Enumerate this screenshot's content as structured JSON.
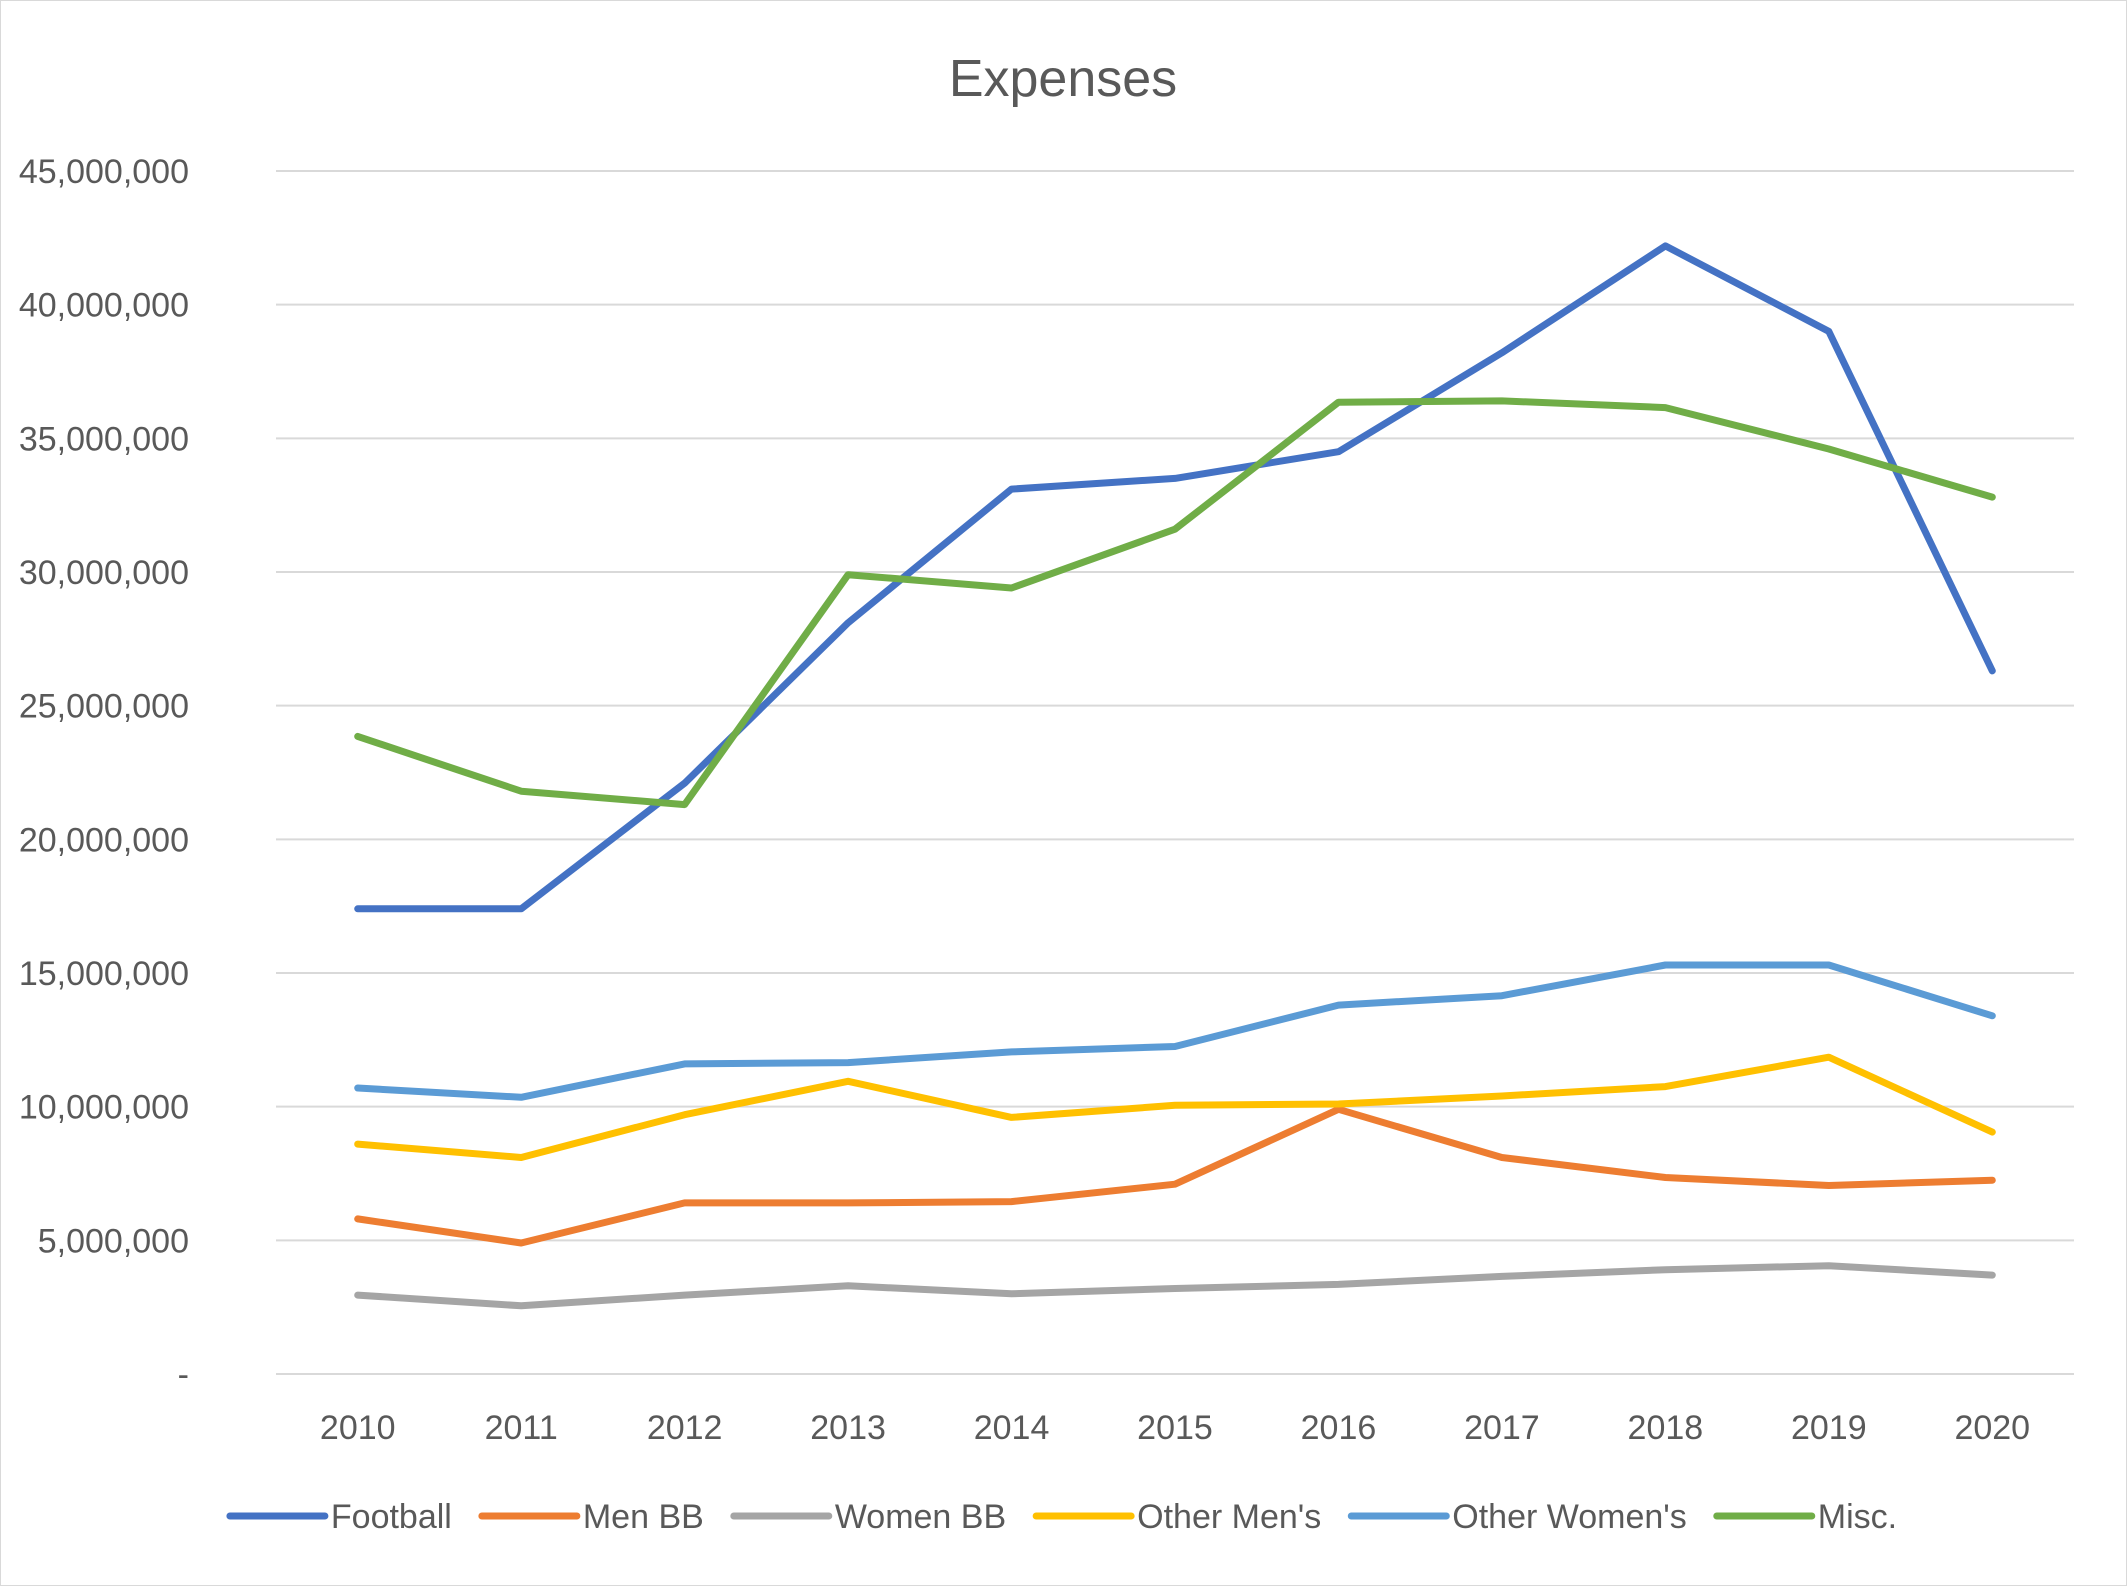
{
  "chart_data": {
    "type": "line",
    "title": "Expenses",
    "xlabel": "",
    "ylabel": "",
    "ylim": [
      0,
      45000000
    ],
    "y_ticks": [
      0,
      5000000,
      10000000,
      15000000,
      20000000,
      25000000,
      30000000,
      35000000,
      40000000,
      45000000
    ],
    "y_tick_labels": [
      "-",
      "5,000,000",
      "10,000,000",
      "15,000,000",
      "20,000,000",
      "25,000,000",
      "30,000,000",
      "35,000,000",
      "40,000,000",
      "45,000,000"
    ],
    "categories": [
      "2010",
      "2011",
      "2012",
      "2013",
      "2014",
      "2015",
      "2016",
      "2017",
      "2018",
      "2019",
      "2020"
    ],
    "grid": true,
    "legend_position": "bottom",
    "series": [
      {
        "name": "Football",
        "color": "#4472C4",
        "values": [
          17400000,
          17400000,
          22100000,
          28100000,
          33100000,
          33500000,
          34500000,
          38200000,
          42200000,
          39000000,
          26300000
        ]
      },
      {
        "name": "Men BB",
        "color": "#ED7D31",
        "values": [
          5800000,
          4900000,
          6400000,
          6400000,
          6450000,
          7100000,
          9900000,
          8100000,
          7350000,
          7050000,
          7250000
        ]
      },
      {
        "name": "Women BB",
        "color": "#A5A5A5",
        "values": [
          2950000,
          2550000,
          2950000,
          3300000,
          3000000,
          3200000,
          3350000,
          3650000,
          3900000,
          4050000,
          3700000
        ]
      },
      {
        "name": "Other Men's",
        "color": "#FFC000",
        "values": [
          8600000,
          8100000,
          9700000,
          10950000,
          9600000,
          10050000,
          10100000,
          10400000,
          10750000,
          11850000,
          9050000
        ]
      },
      {
        "name": "Other Women's",
        "color": "#5B9BD5",
        "values": [
          10700000,
          10350000,
          11600000,
          11650000,
          12050000,
          12250000,
          13800000,
          14150000,
          15300000,
          15300000,
          13400000
        ]
      },
      {
        "name": "Misc.",
        "color": "#70AD47",
        "values": [
          23850000,
          21800000,
          21300000,
          29900000,
          29400000,
          31600000,
          36350000,
          36400000,
          36150000,
          34600000,
          32800000
        ]
      }
    ]
  }
}
